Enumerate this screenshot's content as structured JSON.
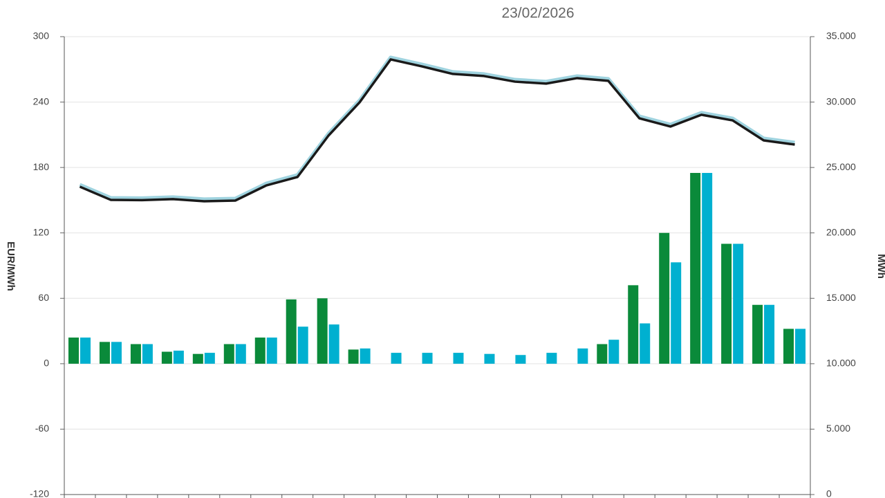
{
  "chart_data": {
    "type": "bar",
    "title": "23/02/2026",
    "y_label": "EUR/MWh",
    "y2_label": "MWh",
    "ylim": [
      -120,
      300
    ],
    "yticks": [
      -120,
      -60,
      0,
      60,
      120,
      180,
      240,
      300
    ],
    "y2lim": [
      0,
      35000
    ],
    "y2ticks": [
      0,
      {
        "value": 5000,
        "label": "5.000"
      },
      {
        "value": 10000,
        "label": "10.000"
      },
      {
        "value": 15000,
        "label": "15.000"
      },
      {
        "value": 20000,
        "label": "20.000"
      },
      {
        "value": 25000,
        "label": "25.000"
      },
      {
        "value": 30000,
        "label": "30.000"
      },
      {
        "value": 35000,
        "label": "35.000"
      }
    ],
    "grid": true,
    "series": [
      {
        "type": "bar",
        "color": "#0a8a3a",
        "values": [
          24,
          20,
          18,
          11,
          9,
          18,
          24,
          59,
          60,
          13,
          0,
          0,
          0,
          0,
          0,
          0,
          0,
          18,
          72,
          120,
          175,
          110,
          54,
          32
        ]
      },
      {
        "type": "bar",
        "color": "#00b0d0",
        "values": [
          24,
          20,
          18,
          12,
          10,
          18,
          24,
          34,
          36,
          14,
          10,
          10,
          10,
          9,
          8,
          10,
          14,
          22,
          37,
          93,
          175,
          110,
          54,
          32
        ]
      },
      {
        "type": "line",
        "axis": "y2",
        "color": "#9fd3df",
        "values": [
          23690,
          22680,
          22660,
          22740,
          22580,
          22630,
          23790,
          24430,
          27600,
          30140,
          33420,
          32890,
          32310,
          32150,
          31720,
          31570,
          31990,
          31780,
          28920,
          28290,
          29190,
          28760,
          27230,
          26910
        ]
      },
      {
        "type": "line",
        "axis": "y2",
        "color": "#1a1a1a",
        "values": [
          23530,
          22520,
          22500,
          22580,
          22420,
          22470,
          23630,
          24270,
          27440,
          29980,
          33260,
          32730,
          32150,
          31990,
          31560,
          31410,
          31830,
          31620,
          28760,
          28130,
          29030,
          28600,
          27070,
          26750
        ]
      }
    ]
  }
}
